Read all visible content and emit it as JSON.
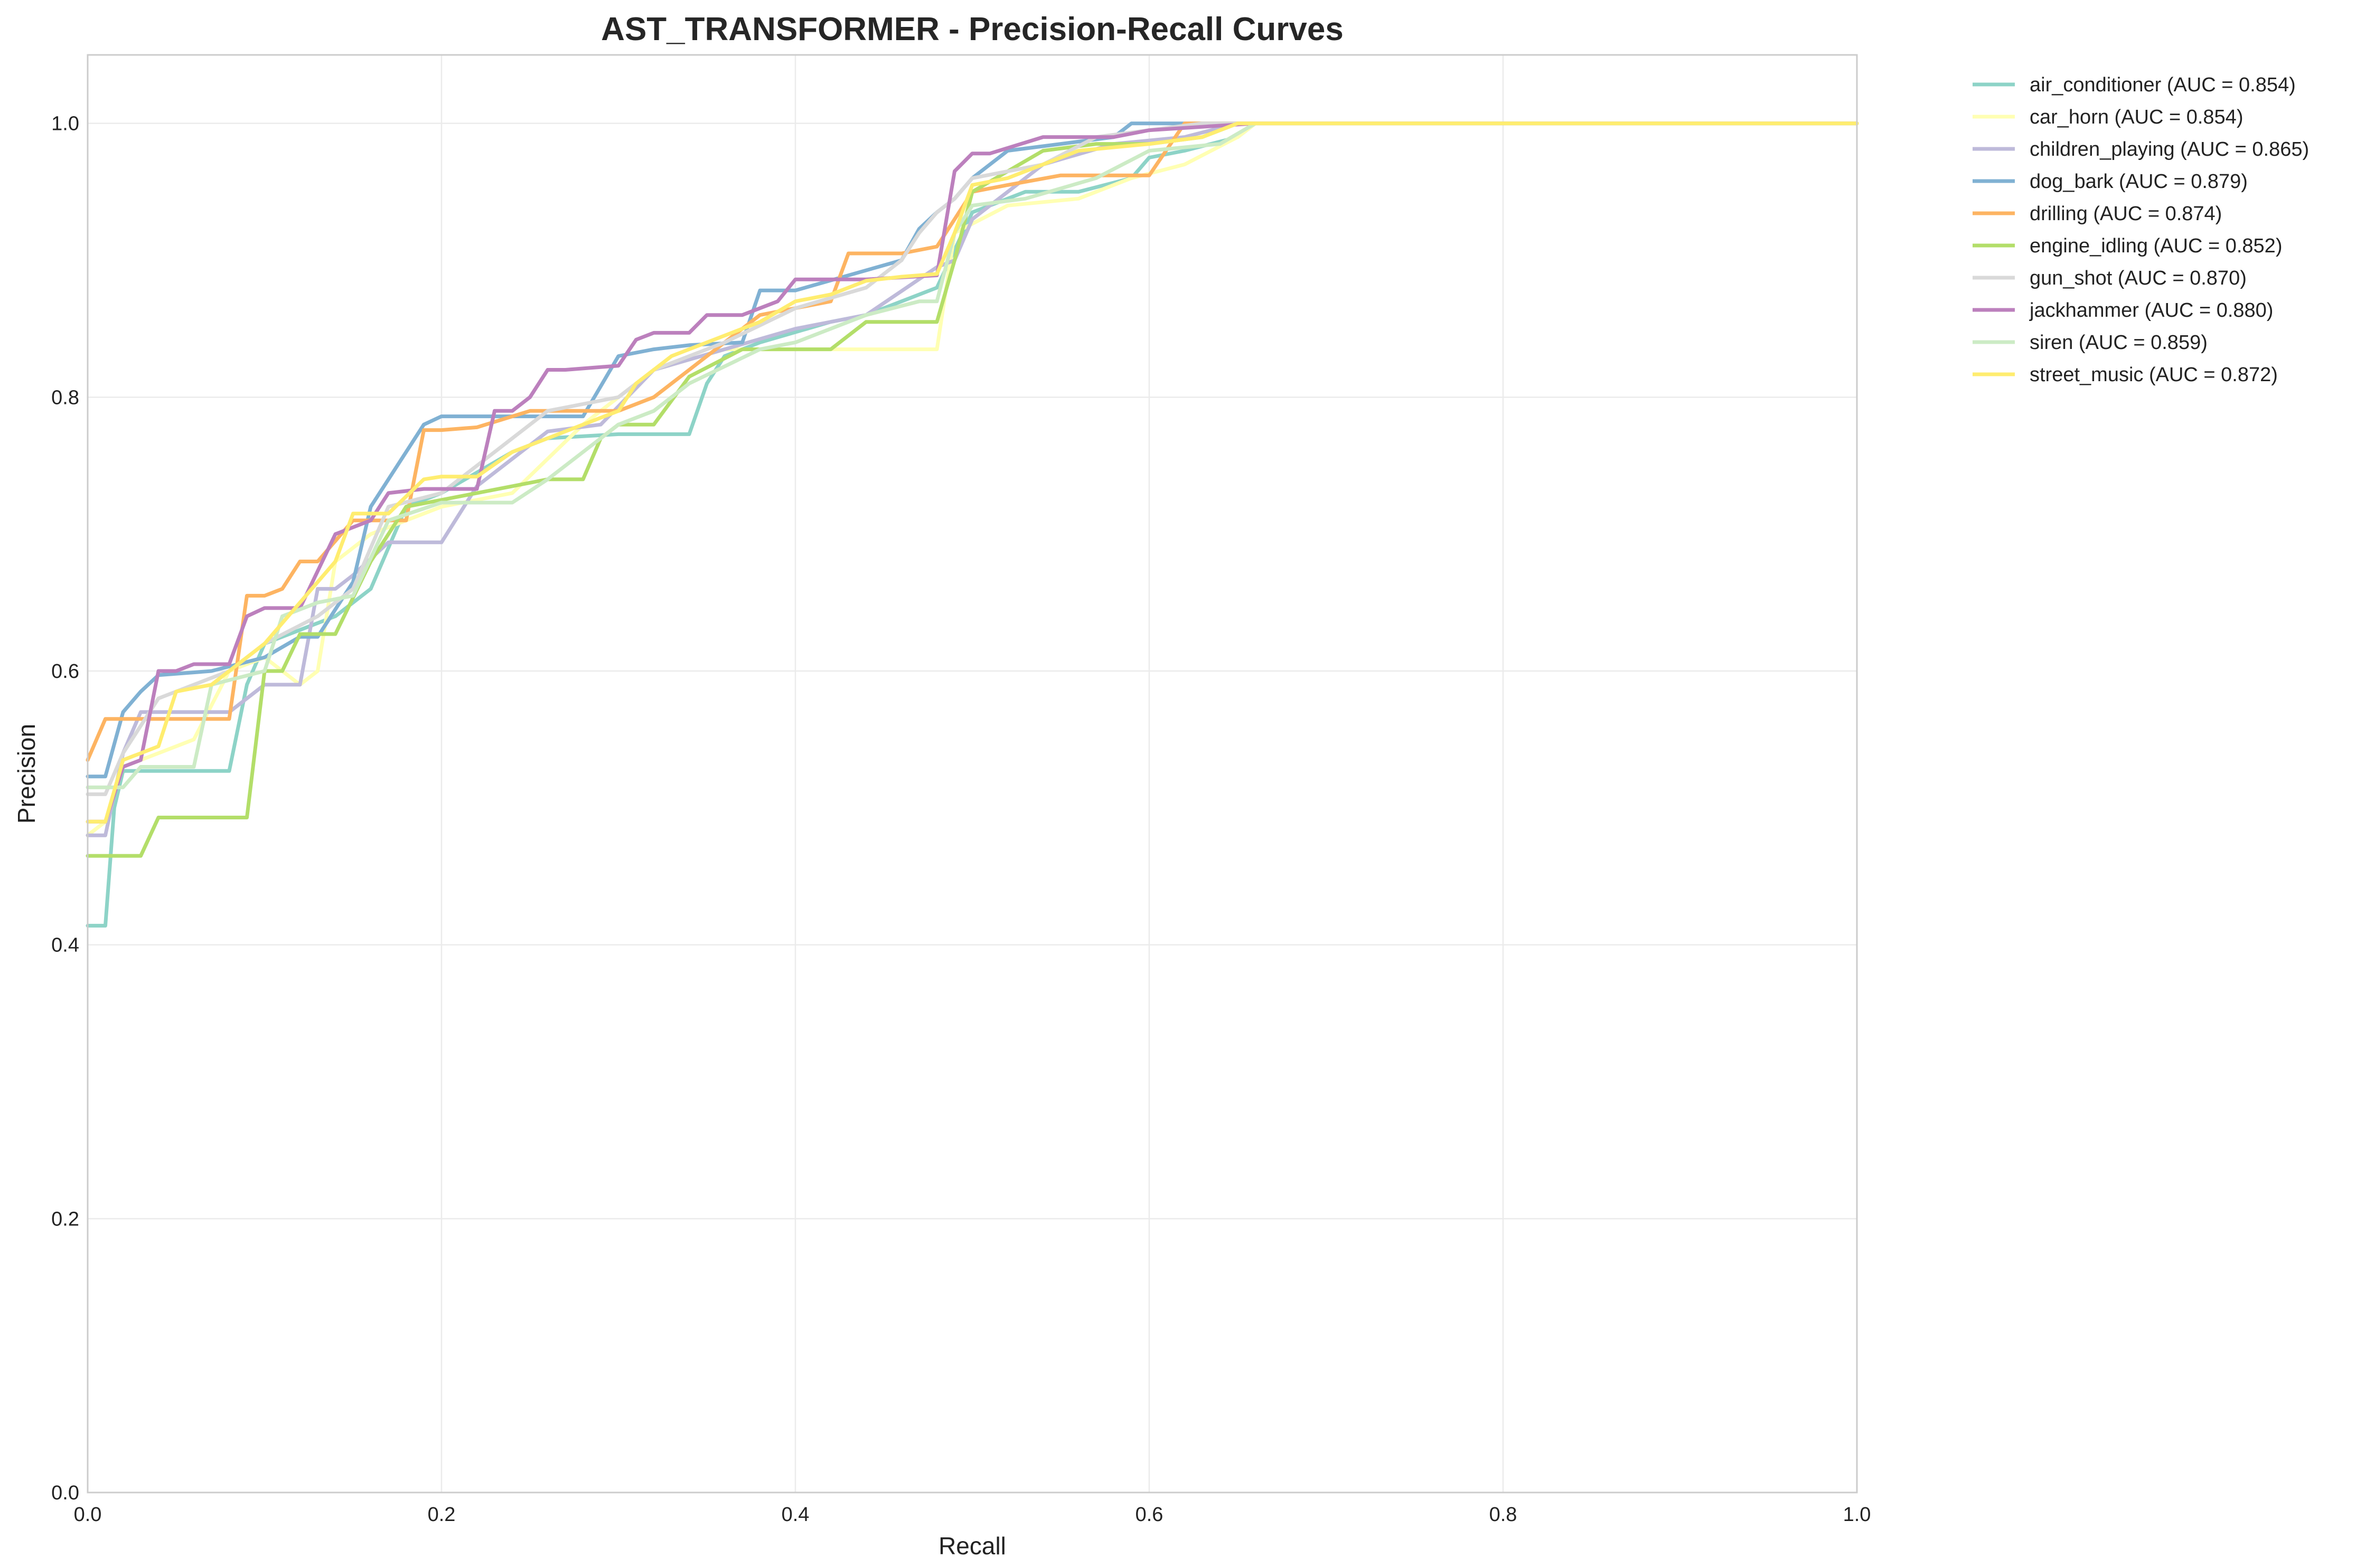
{
  "chart_data": {
    "type": "line",
    "title": "AST_TRANSFORMER - Precision-Recall Curves",
    "xlabel": "Recall",
    "ylabel": "Precision",
    "xlim": [
      0,
      1
    ],
    "ylim": [
      0,
      1.05
    ],
    "xticks": [
      0.0,
      0.2,
      0.4,
      0.6,
      0.8,
      1.0
    ],
    "yticks": [
      0.0,
      0.2,
      0.4,
      0.6,
      0.8,
      1.0
    ],
    "xtick_labels": [
      "0.0",
      "0.2",
      "0.4",
      "0.6",
      "0.8",
      "1.0"
    ],
    "ytick_labels": [
      "0.0",
      "0.2",
      "0.4",
      "0.6",
      "0.8",
      "1.0"
    ],
    "grid": true,
    "legend_position": "outside-right-top",
    "series": [
      {
        "name": "air_conditioner (AUC = 0.854)",
        "color": "#8dd3c7",
        "x": [
          0,
          0.01,
          0.015,
          0.02,
          0.08,
          0.09,
          0.1,
          0.12,
          0.14,
          0.16,
          0.18,
          0.2,
          0.24,
          0.26,
          0.3,
          0.34,
          0.35,
          0.36,
          0.38,
          0.42,
          0.44,
          0.46,
          0.48,
          0.5,
          0.53,
          0.56,
          0.59,
          0.6,
          0.62,
          0.65,
          0.66,
          1.0
        ],
        "y": [
          0.414,
          0.414,
          0.5,
          0.527,
          0.527,
          0.59,
          0.62,
          0.63,
          0.64,
          0.66,
          0.72,
          0.73,
          0.76,
          0.77,
          0.773,
          0.773,
          0.81,
          0.83,
          0.84,
          0.855,
          0.86,
          0.87,
          0.88,
          0.935,
          0.95,
          0.95,
          0.96,
          0.975,
          0.98,
          0.99,
          1.0,
          1.0
        ]
      },
      {
        "name": "car_horn (AUC = 0.854)",
        "color": "#ffffb3",
        "x": [
          0,
          0.01,
          0.02,
          0.04,
          0.06,
          0.08,
          0.1,
          0.12,
          0.13,
          0.14,
          0.16,
          0.2,
          0.24,
          0.28,
          0.3,
          0.32,
          0.36,
          0.4,
          0.44,
          0.48,
          0.49,
          0.52,
          0.56,
          0.59,
          0.62,
          0.65,
          0.66,
          1.0
        ],
        "y": [
          0.48,
          0.49,
          0.53,
          0.54,
          0.55,
          0.6,
          0.61,
          0.59,
          0.6,
          0.68,
          0.7,
          0.72,
          0.73,
          0.78,
          0.8,
          0.82,
          0.835,
          0.835,
          0.835,
          0.835,
          0.92,
          0.94,
          0.945,
          0.96,
          0.97,
          0.99,
          1.0,
          1.0
        ]
      },
      {
        "name": "children_playing (AUC = 0.865)",
        "color": "#bebada",
        "x": [
          0,
          0.01,
          0.02,
          0.03,
          0.08,
          0.1,
          0.12,
          0.13,
          0.14,
          0.15,
          0.17,
          0.2,
          0.22,
          0.26,
          0.29,
          0.32,
          0.36,
          0.4,
          0.44,
          0.48,
          0.49,
          0.5,
          0.54,
          0.58,
          0.62,
          0.65,
          1.0
        ],
        "y": [
          0.48,
          0.48,
          0.54,
          0.57,
          0.57,
          0.59,
          0.59,
          0.66,
          0.66,
          0.67,
          0.694,
          0.694,
          0.735,
          0.775,
          0.78,
          0.82,
          0.835,
          0.85,
          0.86,
          0.895,
          0.9,
          0.93,
          0.97,
          0.985,
          0.99,
          1.0,
          1.0
        ]
      },
      {
        "name": "dog_bark (AUC = 0.879)",
        "color": "#80b1d3",
        "x": [
          0,
          0.01,
          0.02,
          0.03,
          0.04,
          0.07,
          0.1,
          0.12,
          0.13,
          0.15,
          0.16,
          0.19,
          0.2,
          0.24,
          0.28,
          0.3,
          0.32,
          0.34,
          0.37,
          0.38,
          0.4,
          0.46,
          0.47,
          0.48,
          0.49,
          0.5,
          0.52,
          0.55,
          0.58,
          0.59,
          0.65,
          1.0
        ],
        "y": [
          0.523,
          0.523,
          0.57,
          0.585,
          0.597,
          0.6,
          0.61,
          0.625,
          0.625,
          0.665,
          0.72,
          0.78,
          0.786,
          0.786,
          0.786,
          0.83,
          0.835,
          0.838,
          0.84,
          0.878,
          0.878,
          0.9,
          0.923,
          0.935,
          0.945,
          0.96,
          0.98,
          0.985,
          0.99,
          1.0,
          1.0,
          1.0
        ]
      },
      {
        "name": "drilling (AUC = 0.874)",
        "color": "#fdb462",
        "x": [
          0,
          0.01,
          0.02,
          0.04,
          0.06,
          0.08,
          0.09,
          0.1,
          0.11,
          0.12,
          0.13,
          0.15,
          0.18,
          0.19,
          0.2,
          0.22,
          0.25,
          0.28,
          0.3,
          0.32,
          0.34,
          0.38,
          0.42,
          0.43,
          0.46,
          0.48,
          0.5,
          0.52,
          0.55,
          0.6,
          0.62,
          0.66,
          1.0
        ],
        "y": [
          0.535,
          0.565,
          0.565,
          0.565,
          0.565,
          0.565,
          0.655,
          0.655,
          0.66,
          0.68,
          0.68,
          0.71,
          0.71,
          0.776,
          0.776,
          0.778,
          0.79,
          0.79,
          0.79,
          0.8,
          0.82,
          0.86,
          0.87,
          0.905,
          0.905,
          0.91,
          0.95,
          0.955,
          0.962,
          0.962,
          1.0,
          1.0,
          1.0
        ]
      },
      {
        "name": "engine_idling (AUC = 0.852)",
        "color": "#b3de69",
        "x": [
          0,
          0.03,
          0.04,
          0.09,
          0.1,
          0.11,
          0.12,
          0.14,
          0.16,
          0.18,
          0.22,
          0.26,
          0.28,
          0.29,
          0.3,
          0.32,
          0.34,
          0.37,
          0.4,
          0.42,
          0.44,
          0.47,
          0.48,
          0.49,
          0.5,
          0.54,
          0.57,
          0.6,
          0.63,
          0.65,
          0.66,
          1.0
        ],
        "y": [
          0.465,
          0.465,
          0.493,
          0.493,
          0.6,
          0.6,
          0.627,
          0.627,
          0.68,
          0.72,
          0.73,
          0.74,
          0.74,
          0.77,
          0.78,
          0.78,
          0.815,
          0.835,
          0.835,
          0.835,
          0.855,
          0.855,
          0.855,
          0.9,
          0.95,
          0.98,
          0.985,
          0.985,
          0.99,
          1.0,
          1.0,
          1.0
        ]
      },
      {
        "name": "gun_shot (AUC = 0.870)",
        "color": "#d9d9d9",
        "x": [
          0,
          0.01,
          0.02,
          0.04,
          0.08,
          0.1,
          0.13,
          0.15,
          0.17,
          0.2,
          0.23,
          0.26,
          0.3,
          0.32,
          0.36,
          0.4,
          0.44,
          0.46,
          0.47,
          0.48,
          0.49,
          0.5,
          0.54,
          0.57,
          0.6,
          0.63,
          0.65,
          1.0
        ],
        "y": [
          0.51,
          0.51,
          0.54,
          0.58,
          0.6,
          0.62,
          0.64,
          0.66,
          0.72,
          0.73,
          0.76,
          0.79,
          0.8,
          0.82,
          0.84,
          0.865,
          0.88,
          0.9,
          0.92,
          0.935,
          0.945,
          0.96,
          0.97,
          0.99,
          0.995,
          1.0,
          1.0,
          1.0
        ]
      },
      {
        "name": "jackhammer (AUC = 0.880)",
        "color": "#bc80bd",
        "x": [
          0,
          0.01,
          0.02,
          0.03,
          0.04,
          0.05,
          0.06,
          0.08,
          0.09,
          0.1,
          0.12,
          0.14,
          0.16,
          0.17,
          0.19,
          0.22,
          0.23,
          0.24,
          0.25,
          0.26,
          0.27,
          0.3,
          0.31,
          0.32,
          0.34,
          0.35,
          0.37,
          0.39,
          0.4,
          0.44,
          0.48,
          0.49,
          0.5,
          0.51,
          0.52,
          0.53,
          0.54,
          0.55,
          0.58,
          0.6,
          0.66,
          1.0
        ],
        "y": [
          0.49,
          0.49,
          0.53,
          0.535,
          0.6,
          0.6,
          0.605,
          0.605,
          0.64,
          0.646,
          0.646,
          0.7,
          0.71,
          0.73,
          0.733,
          0.733,
          0.79,
          0.79,
          0.8,
          0.82,
          0.82,
          0.823,
          0.842,
          0.847,
          0.847,
          0.86,
          0.86,
          0.87,
          0.886,
          0.886,
          0.889,
          0.965,
          0.978,
          0.978,
          0.982,
          0.986,
          0.99,
          0.99,
          0.99,
          0.995,
          1.0,
          1.0
        ]
      },
      {
        "name": "siren (AUC = 0.859)",
        "color": "#ccebc5",
        "x": [
          0,
          0.02,
          0.03,
          0.04,
          0.06,
          0.07,
          0.1,
          0.11,
          0.13,
          0.15,
          0.17,
          0.2,
          0.24,
          0.26,
          0.28,
          0.3,
          0.32,
          0.34,
          0.38,
          0.4,
          0.44,
          0.47,
          0.48,
          0.49,
          0.5,
          0.53,
          0.57,
          0.6,
          0.64,
          0.66,
          1.0
        ],
        "y": [
          0.515,
          0.515,
          0.53,
          0.53,
          0.53,
          0.59,
          0.6,
          0.64,
          0.65,
          0.655,
          0.71,
          0.723,
          0.723,
          0.74,
          0.76,
          0.78,
          0.79,
          0.81,
          0.835,
          0.84,
          0.86,
          0.87,
          0.87,
          0.92,
          0.94,
          0.945,
          0.96,
          0.98,
          0.985,
          1.0,
          1.0
        ]
      },
      {
        "name": "street_music (AUC = 0.872)",
        "color": "#ffed6f",
        "x": [
          0,
          0.01,
          0.02,
          0.04,
          0.05,
          0.07,
          0.09,
          0.1,
          0.12,
          0.14,
          0.15,
          0.17,
          0.19,
          0.2,
          0.22,
          0.24,
          0.26,
          0.28,
          0.3,
          0.31,
          0.33,
          0.36,
          0.38,
          0.4,
          0.42,
          0.44,
          0.46,
          0.48,
          0.49,
          0.5,
          0.52,
          0.56,
          0.6,
          0.63,
          0.65,
          1.0
        ],
        "y": [
          0.49,
          0.49,
          0.535,
          0.545,
          0.585,
          0.59,
          0.61,
          0.62,
          0.65,
          0.68,
          0.715,
          0.715,
          0.74,
          0.742,
          0.742,
          0.76,
          0.77,
          0.78,
          0.79,
          0.81,
          0.83,
          0.845,
          0.855,
          0.87,
          0.875,
          0.885,
          0.888,
          0.89,
          0.92,
          0.955,
          0.96,
          0.98,
          0.985,
          0.99,
          1.0,
          1.0
        ]
      }
    ]
  }
}
